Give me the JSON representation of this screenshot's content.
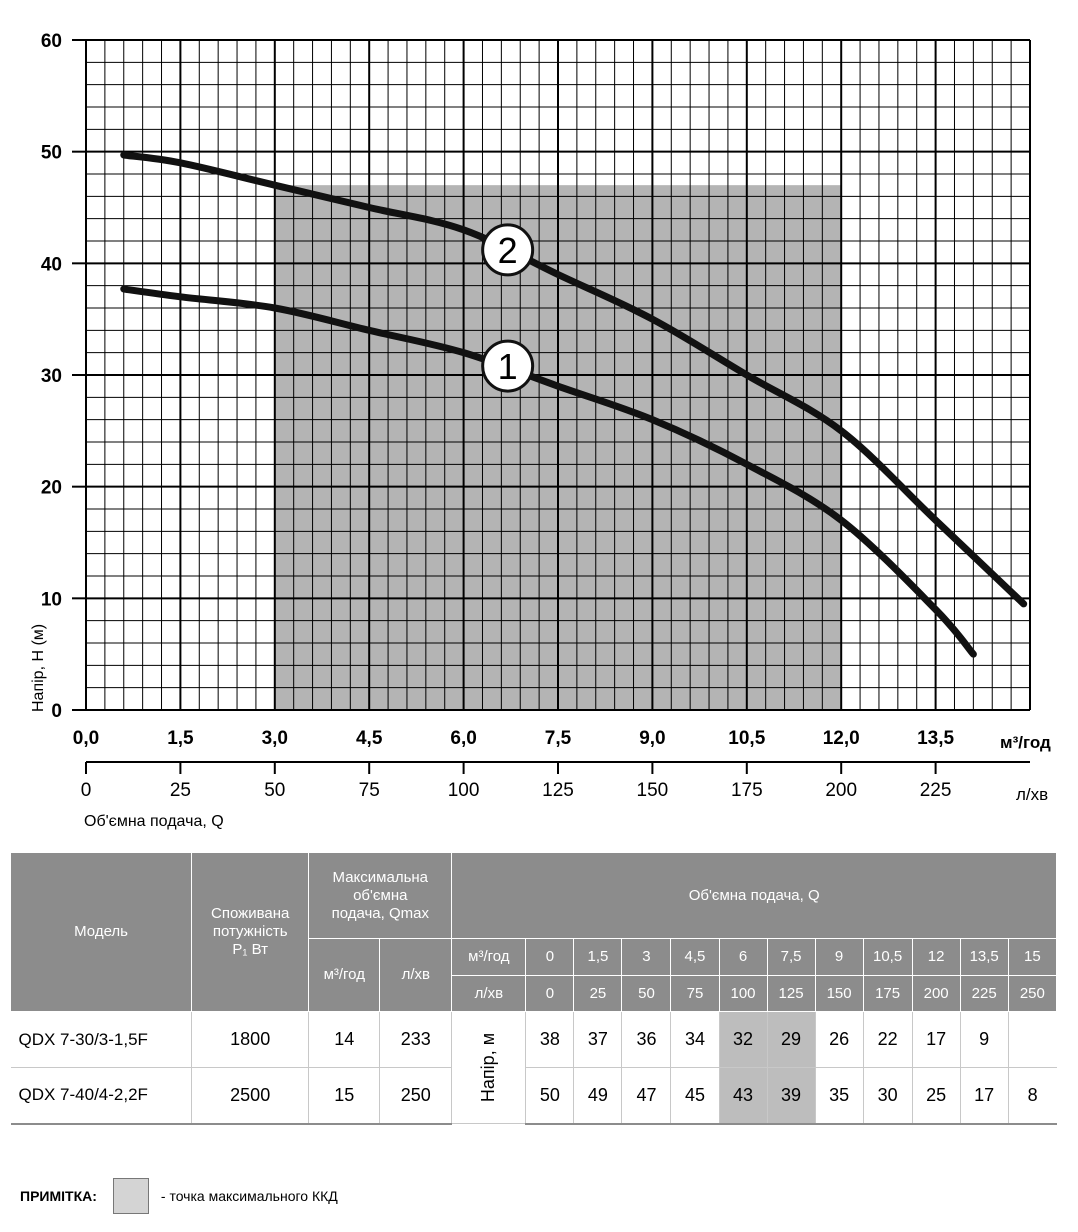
{
  "chart_data": {
    "type": "line",
    "ylabel": "Напір, Н (м)",
    "xlabel": "Об'ємна подача, Q",
    "x_unit": "м³/год",
    "x2_unit": "л/хв",
    "xlim": [
      0,
      15
    ],
    "ylim": [
      0,
      60
    ],
    "x_ticks": [
      "0,0",
      "1,5",
      "3,0",
      "4,5",
      "6,0",
      "7,5",
      "9,0",
      "10,5",
      "12,0",
      "13,5"
    ],
    "x_tick_values": [
      0,
      1.5,
      3,
      4.5,
      6,
      7.5,
      9,
      10.5,
      12,
      13.5
    ],
    "x2_ticks": [
      "0",
      "25",
      "50",
      "75",
      "100",
      "125",
      "150",
      "175",
      "200",
      "225"
    ],
    "y_ticks": [
      "0",
      "10",
      "20",
      "30",
      "40",
      "50",
      "60"
    ],
    "y_tick_values": [
      0,
      10,
      20,
      30,
      40,
      50,
      60
    ],
    "grid": true,
    "shaded_region": {
      "x": [
        3,
        12
      ],
      "meaning": "точка максимального ККД"
    },
    "series": [
      {
        "name": "1",
        "x": [
          0.6,
          1.5,
          3,
          4.5,
          6,
          7.5,
          9,
          10.5,
          12,
          13.5,
          14.1
        ],
        "y": [
          37.7,
          37,
          36,
          34,
          32,
          29,
          26,
          22,
          17,
          9,
          5
        ]
      },
      {
        "name": "2",
        "x": [
          0.6,
          1.5,
          3,
          4.5,
          6,
          7.5,
          9,
          10.5,
          12,
          13.5,
          14.9
        ],
        "y": [
          49.7,
          49,
          47,
          45,
          43,
          39,
          35,
          30,
          25,
          17,
          9.5
        ]
      }
    ],
    "curve_labels": [
      {
        "text": "1",
        "x": 6.7,
        "y": 30.8
      },
      {
        "text": "2",
        "x": 6.7,
        "y": 41.2
      }
    ]
  },
  "table": {
    "headers": {
      "model": "Модель",
      "power": [
        "Споживана",
        "потужність",
        "P₁ Вт"
      ],
      "qmax": [
        "Максимальна",
        "об'ємна",
        "подача, Qmax"
      ],
      "qmax_units": [
        "м³/год",
        "л/хв"
      ],
      "flow": "Об'ємна подача, Q",
      "flow_unit_m3": "м³/год",
      "flow_unit_l": "л/хв",
      "head_label": "Напір, м"
    },
    "flow_m3": [
      "0",
      "1,5",
      "3",
      "4,5",
      "6",
      "7,5",
      "9",
      "10,5",
      "12",
      "13,5",
      "15"
    ],
    "flow_l": [
      "0",
      "25",
      "50",
      "75",
      "100",
      "125",
      "150",
      "175",
      "200",
      "225",
      "250"
    ],
    "highlight_columns": [
      4,
      5
    ],
    "rows": [
      {
        "model": "QDX 7-30/3-1,5F",
        "power": "1800",
        "qmax_m3": "14",
        "qmax_l": "233",
        "heads": [
          "38",
          "37",
          "36",
          "34",
          "32",
          "29",
          "26",
          "22",
          "17",
          "9",
          ""
        ]
      },
      {
        "model": "QDX 7-40/4-2,2F",
        "power": "2500",
        "qmax_m3": "15",
        "qmax_l": "250",
        "heads": [
          "50",
          "49",
          "47",
          "45",
          "43",
          "39",
          "35",
          "30",
          "25",
          "17",
          "8"
        ]
      }
    ]
  },
  "note": {
    "label": "ПРИМІТКА:",
    "text": "- точка максимального ККД",
    "swatch_color": "#d4d4d4"
  }
}
